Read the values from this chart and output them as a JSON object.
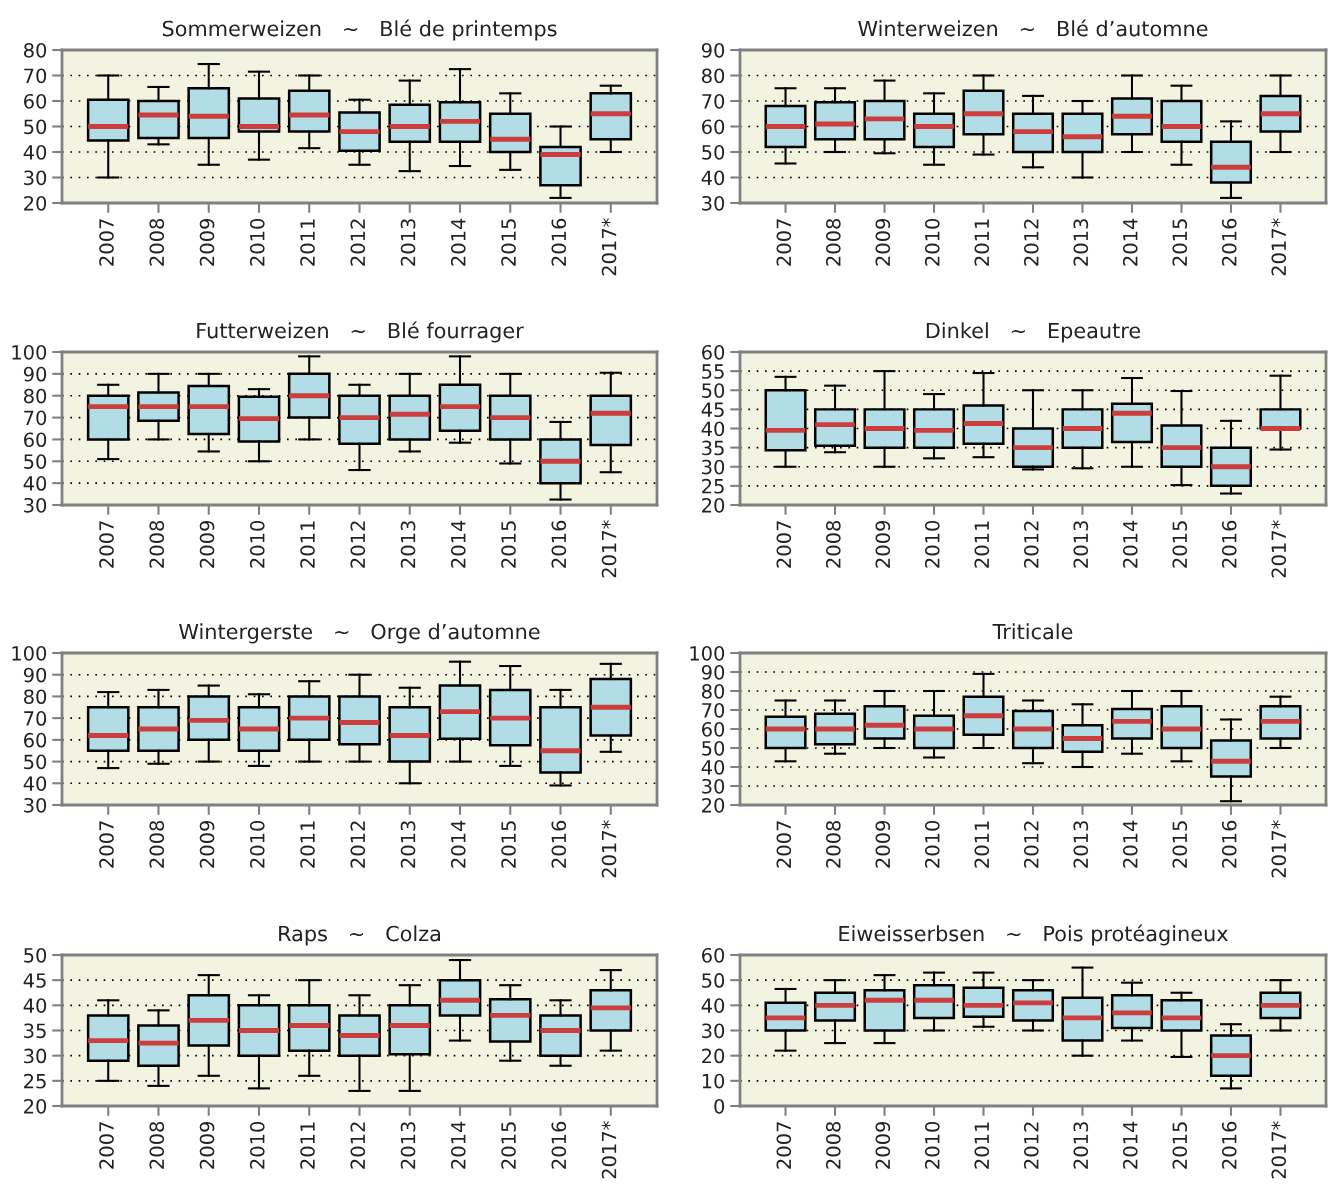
{
  "chart_data": [
    {
      "type": "box",
      "title": "Sommerweizen   ~   Blé de printemps",
      "categories": [
        "2007",
        "2008",
        "2009",
        "2010",
        "2011",
        "2012",
        "2013",
        "2014",
        "2015",
        "2016",
        "2017*"
      ],
      "ylim": [
        20,
        80
      ],
      "yticks": [
        20,
        30,
        40,
        50,
        60,
        70,
        80
      ],
      "grid": "y",
      "series": [
        {
          "color": "#b3dde6",
          "boxes": [
            {
              "low": 30,
              "q1": 44.5,
              "median": 50,
              "q3": 60.5,
              "high": 70
            },
            {
              "low": 43,
              "q1": 45.5,
              "median": 54.5,
              "q3": 60,
              "high": 65.5
            },
            {
              "low": 35,
              "q1": 45.5,
              "median": 54,
              "q3": 65,
              "high": 74.5
            },
            {
              "low": 37,
              "q1": 48,
              "median": 50,
              "q3": 61,
              "high": 71.5
            },
            {
              "low": 41.5,
              "q1": 48,
              "median": 54.5,
              "q3": 64,
              "high": 70
            },
            {
              "low": 35,
              "q1": 40.5,
              "median": 48,
              "q3": 55.5,
              "high": 60.5
            },
            {
              "low": 32.5,
              "q1": 44,
              "median": 50,
              "q3": 58.5,
              "high": 68
            },
            {
              "low": 34.5,
              "q1": 44,
              "median": 52,
              "q3": 59.5,
              "high": 72.5
            },
            {
              "low": 33,
              "q1": 40,
              "median": 45,
              "q3": 55,
              "high": 63
            },
            {
              "low": 22,
              "q1": 27,
              "median": 39,
              "q3": 42,
              "high": 50
            },
            {
              "low": 40,
              "q1": 45,
              "median": 55,
              "q3": 63,
              "high": 66
            }
          ]
        }
      ]
    },
    {
      "type": "box",
      "title": "Winterweizen   ~   Blé d’automne",
      "categories": [
        "2007",
        "2008",
        "2009",
        "2010",
        "2011",
        "2012",
        "2013",
        "2014",
        "2015",
        "2016",
        "2017*"
      ],
      "ylim": [
        30,
        90
      ],
      "yticks": [
        30,
        40,
        50,
        60,
        70,
        80,
        90
      ],
      "grid": "y",
      "series": [
        {
          "color": "#b3dde6",
          "boxes": [
            {
              "low": 45.5,
              "q1": 52,
              "median": 60,
              "q3": 68,
              "high": 75
            },
            {
              "low": 50,
              "q1": 55,
              "median": 61,
              "q3": 69.5,
              "high": 75
            },
            {
              "low": 49.5,
              "q1": 55,
              "median": 63,
              "q3": 70,
              "high": 78
            },
            {
              "low": 45,
              "q1": 52,
              "median": 60,
              "q3": 65,
              "high": 73
            },
            {
              "low": 49,
              "q1": 57,
              "median": 65,
              "q3": 74,
              "high": 80
            },
            {
              "low": 44,
              "q1": 50,
              "median": 58,
              "q3": 65,
              "high": 72
            },
            {
              "low": 40,
              "q1": 50,
              "median": 56,
              "q3": 65,
              "high": 70
            },
            {
              "low": 50,
              "q1": 57,
              "median": 64,
              "q3": 71,
              "high": 80
            },
            {
              "low": 45,
              "q1": 54,
              "median": 60,
              "q3": 70,
              "high": 76
            },
            {
              "low": 32,
              "q1": 38,
              "median": 44,
              "q3": 54,
              "high": 62
            },
            {
              "low": 50,
              "q1": 58,
              "median": 65,
              "q3": 72,
              "high": 80
            }
          ]
        }
      ]
    },
    {
      "type": "box",
      "title": "Futterweizen   ~   Blé fourrager",
      "categories": [
        "2007",
        "2008",
        "2009",
        "2010",
        "2011",
        "2012",
        "2013",
        "2014",
        "2015",
        "2016",
        "2017*"
      ],
      "ylim": [
        30,
        100
      ],
      "yticks": [
        30,
        40,
        50,
        60,
        70,
        80,
        90,
        100
      ],
      "grid": "y",
      "series": [
        {
          "color": "#b3dde6",
          "boxes": [
            {
              "low": 51,
              "q1": 60,
              "median": 75,
              "q3": 80,
              "high": 85
            },
            {
              "low": 60,
              "q1": 68.5,
              "median": 75,
              "q3": 81.5,
              "high": 90
            },
            {
              "low": 54.5,
              "q1": 62.5,
              "median": 75,
              "q3": 84.5,
              "high": 90
            },
            {
              "low": 50,
              "q1": 59,
              "median": 69.5,
              "q3": 79.5,
              "high": 83
            },
            {
              "low": 60,
              "q1": 70,
              "median": 80,
              "q3": 90,
              "high": 98
            },
            {
              "low": 46,
              "q1": 58,
              "median": 70,
              "q3": 80,
              "high": 85
            },
            {
              "low": 54.5,
              "q1": 60,
              "median": 71.5,
              "q3": 80,
              "high": 90
            },
            {
              "low": 58.5,
              "q1": 64,
              "median": 75,
              "q3": 85,
              "high": 98
            },
            {
              "low": 49,
              "q1": 60,
              "median": 70,
              "q3": 80,
              "high": 90
            },
            {
              "low": 32.5,
              "q1": 40,
              "median": 50,
              "q3": 60,
              "high": 68
            },
            {
              "low": 45,
              "q1": 57.5,
              "median": 72,
              "q3": 80,
              "high": 90.5
            }
          ]
        }
      ]
    },
    {
      "type": "box",
      "title": "Dinkel   ~   Epeautre",
      "categories": [
        "2007",
        "2008",
        "2009",
        "2010",
        "2011",
        "2012",
        "2013",
        "2014",
        "2015",
        "2016",
        "2017*"
      ],
      "ylim": [
        20,
        60
      ],
      "yticks": [
        20,
        25,
        30,
        35,
        40,
        45,
        50,
        55,
        60
      ],
      "grid": "y",
      "series": [
        {
          "color": "#b3dde6",
          "boxes": [
            {
              "low": 30,
              "q1": 34.3,
              "median": 39.5,
              "q3": 50,
              "high": 53.5
            },
            {
              "low": 33.8,
              "q1": 35.5,
              "median": 41,
              "q3": 45,
              "high": 51.2
            },
            {
              "low": 30,
              "q1": 35,
              "median": 40,
              "q3": 45,
              "high": 55
            },
            {
              "low": 32.2,
              "q1": 35,
              "median": 39.5,
              "q3": 45,
              "high": 49
            },
            {
              "low": 32.5,
              "q1": 36,
              "median": 41.3,
              "q3": 46,
              "high": 54.5
            },
            {
              "low": 29.3,
              "q1": 30,
              "median": 35,
              "q3": 40,
              "high": 50
            },
            {
              "low": 29.6,
              "q1": 35,
              "median": 40,
              "q3": 45,
              "high": 50
            },
            {
              "low": 30,
              "q1": 36.5,
              "median": 44,
              "q3": 46.5,
              "high": 53.2
            },
            {
              "low": 25.2,
              "q1": 30,
              "median": 35,
              "q3": 40.8,
              "high": 49.8
            },
            {
              "low": 23,
              "q1": 25,
              "median": 30,
              "q3": 35,
              "high": 42
            },
            {
              "low": 34.5,
              "q1": 40,
              "median": 40,
              "q3": 45,
              "high": 53.8
            }
          ]
        }
      ]
    },
    {
      "type": "box",
      "title": "Wintergerste   ~   Orge d’automne",
      "categories": [
        "2007",
        "2008",
        "2009",
        "2010",
        "2011",
        "2012",
        "2013",
        "2014",
        "2015",
        "2016",
        "2017*"
      ],
      "ylim": [
        30,
        100
      ],
      "yticks": [
        30,
        40,
        50,
        60,
        70,
        80,
        90,
        100
      ],
      "grid": "y",
      "series": [
        {
          "color": "#b3dde6",
          "boxes": [
            {
              "low": 47,
              "q1": 55,
              "median": 62,
              "q3": 75,
              "high": 82
            },
            {
              "low": 49,
              "q1": 55,
              "median": 65,
              "q3": 75,
              "high": 83
            },
            {
              "low": 50,
              "q1": 60,
              "median": 69,
              "q3": 80,
              "high": 85
            },
            {
              "low": 48,
              "q1": 55,
              "median": 65,
              "q3": 75,
              "high": 81
            },
            {
              "low": 50,
              "q1": 60,
              "median": 70,
              "q3": 80,
              "high": 87
            },
            {
              "low": 50,
              "q1": 58,
              "median": 68,
              "q3": 80,
              "high": 90
            },
            {
              "low": 40,
              "q1": 50,
              "median": 62,
              "q3": 75,
              "high": 84
            },
            {
              "low": 50,
              "q1": 60.5,
              "median": 73,
              "q3": 85,
              "high": 96
            },
            {
              "low": 48,
              "q1": 57.5,
              "median": 70,
              "q3": 83,
              "high": 94
            },
            {
              "low": 39,
              "q1": 45,
              "median": 55,
              "q3": 75,
              "high": 83
            },
            {
              "low": 54.5,
              "q1": 62,
              "median": 75,
              "q3": 88,
              "high": 95
            }
          ]
        }
      ]
    },
    {
      "type": "box",
      "title": "Triticale",
      "categories": [
        "2007",
        "2008",
        "2009",
        "2010",
        "2011",
        "2012",
        "2013",
        "2014",
        "2015",
        "2016",
        "2017*"
      ],
      "ylim": [
        20,
        100
      ],
      "yticks": [
        20,
        30,
        40,
        50,
        60,
        70,
        80,
        90,
        100
      ],
      "grid": "y",
      "series": [
        {
          "color": "#b3dde6",
          "boxes": [
            {
              "low": 43,
              "q1": 50,
              "median": 60,
              "q3": 66.5,
              "high": 75
            },
            {
              "low": 47,
              "q1": 52,
              "median": 60,
              "q3": 68,
              "high": 75
            },
            {
              "low": 50,
              "q1": 55,
              "median": 62,
              "q3": 72,
              "high": 80
            },
            {
              "low": 45,
              "q1": 50,
              "median": 60,
              "q3": 67,
              "high": 80
            },
            {
              "low": 50,
              "q1": 57,
              "median": 67,
              "q3": 77,
              "high": 89
            },
            {
              "low": 42,
              "q1": 50,
              "median": 60,
              "q3": 69.5,
              "high": 75
            },
            {
              "low": 40,
              "q1": 48,
              "median": 55,
              "q3": 62,
              "high": 73
            },
            {
              "low": 47,
              "q1": 55,
              "median": 64,
              "q3": 70.5,
              "high": 80
            },
            {
              "low": 43,
              "q1": 50,
              "median": 60,
              "q3": 72,
              "high": 80
            },
            {
              "low": 22,
              "q1": 35,
              "median": 43,
              "q3": 54,
              "high": 65
            },
            {
              "low": 50,
              "q1": 55,
              "median": 64,
              "q3": 72,
              "high": 77
            }
          ]
        }
      ]
    },
    {
      "type": "box",
      "title": "Raps   ~   Colza",
      "categories": [
        "2007",
        "2008",
        "2009",
        "2010",
        "2011",
        "2012",
        "2013",
        "2014",
        "2015",
        "2016",
        "2017*"
      ],
      "ylim": [
        20,
        50
      ],
      "yticks": [
        20,
        25,
        30,
        35,
        40,
        45,
        50
      ],
      "grid": "y",
      "series": [
        {
          "color": "#b3dde6",
          "boxes": [
            {
              "low": 25,
              "q1": 29,
              "median": 33,
              "q3": 38,
              "high": 41
            },
            {
              "low": 24,
              "q1": 28,
              "median": 32.5,
              "q3": 36,
              "high": 39
            },
            {
              "low": 26,
              "q1": 32,
              "median": 37,
              "q3": 42,
              "high": 46
            },
            {
              "low": 23.5,
              "q1": 30,
              "median": 35,
              "q3": 40,
              "high": 42
            },
            {
              "low": 26,
              "q1": 31,
              "median": 36,
              "q3": 40,
              "high": 45
            },
            {
              "low": 23,
              "q1": 30,
              "median": 34,
              "q3": 38,
              "high": 42
            },
            {
              "low": 23,
              "q1": 30.3,
              "median": 36,
              "q3": 40,
              "high": 44
            },
            {
              "low": 33,
              "q1": 38,
              "median": 41,
              "q3": 45,
              "high": 49
            },
            {
              "low": 29,
              "q1": 32.8,
              "median": 38,
              "q3": 41.2,
              "high": 44
            },
            {
              "low": 28,
              "q1": 30,
              "median": 35,
              "q3": 38,
              "high": 41
            },
            {
              "low": 31,
              "q1": 35,
              "median": 39.5,
              "q3": 43,
              "high": 47
            }
          ]
        }
      ]
    },
    {
      "type": "box",
      "title": "Eiweisserbsen   ~   Pois protéagineux",
      "categories": [
        "2007",
        "2008",
        "2009",
        "2010",
        "2011",
        "2012",
        "2013",
        "2014",
        "2015",
        "2016",
        "2017*"
      ],
      "ylim": [
        0,
        60
      ],
      "yticks": [
        0,
        10,
        20,
        30,
        40,
        50,
        60
      ],
      "grid": "y",
      "series": [
        {
          "color": "#b3dde6",
          "boxes": [
            {
              "low": 22,
              "q1": 30,
              "median": 35,
              "q3": 41,
              "high": 46.5
            },
            {
              "low": 25,
              "q1": 34,
              "median": 40,
              "q3": 45,
              "high": 50
            },
            {
              "low": 25,
              "q1": 30,
              "median": 42,
              "q3": 46,
              "high": 52
            },
            {
              "low": 30,
              "q1": 35,
              "median": 42,
              "q3": 48,
              "high": 53
            },
            {
              "low": 31.5,
              "q1": 35.5,
              "median": 40,
              "q3": 47,
              "high": 53
            },
            {
              "low": 30,
              "q1": 34,
              "median": 41,
              "q3": 46,
              "high": 50
            },
            {
              "low": 20,
              "q1": 26,
              "median": 35,
              "q3": 43,
              "high": 55
            },
            {
              "low": 26,
              "q1": 31,
              "median": 37,
              "q3": 44,
              "high": 49
            },
            {
              "low": 19.5,
              "q1": 30,
              "median": 35,
              "q3": 42,
              "high": 45
            },
            {
              "low": 7,
              "q1": 12,
              "median": 20,
              "q3": 28,
              "high": 32.5
            },
            {
              "low": 30,
              "q1": 35,
              "median": 40,
              "q3": 45,
              "high": 50
            }
          ]
        }
      ]
    }
  ]
}
